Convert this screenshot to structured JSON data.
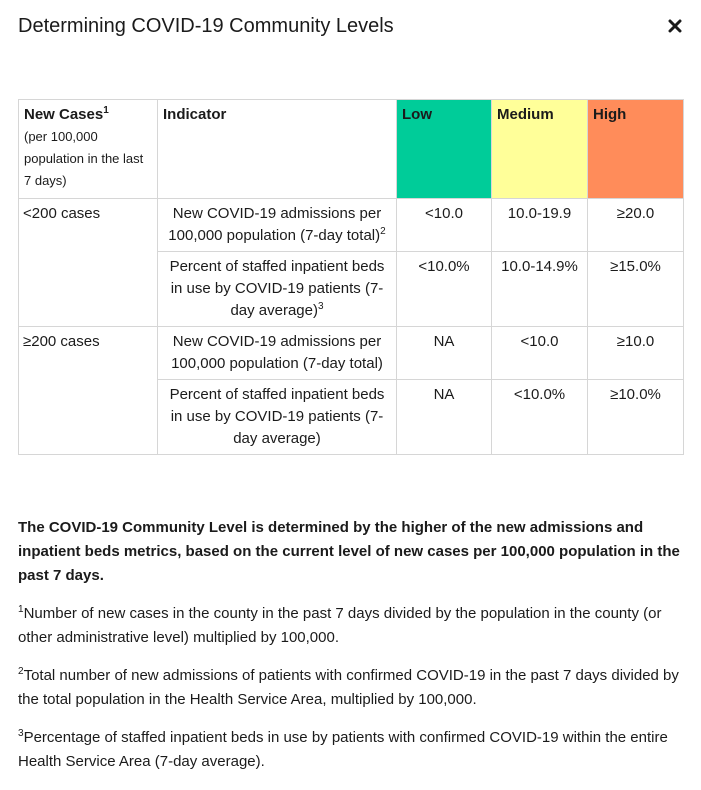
{
  "dialog": {
    "title": "Determining COVID-19 Community Levels",
    "close_icon": "close-icon"
  },
  "table": {
    "headers": {
      "new_cases": "New Cases",
      "new_cases_sup": "1",
      "new_cases_sub": "(per 100,000 population in the last 7 days)",
      "indicator": "Indicator",
      "low": "Low",
      "medium": "Medium",
      "high": "High"
    },
    "colors": {
      "low": "#00cc99",
      "medium": "#ffff99",
      "high": "#ff8c5a"
    },
    "groups": [
      {
        "label": "<200 cases",
        "rows": [
          {
            "indicator": "New COVID-19 admissions per 100,000 population (7-day total)",
            "sup": "2",
            "low": "<10.0",
            "medium": "10.0-19.9",
            "high": "≥20.0"
          },
          {
            "indicator": "Percent of staffed inpatient beds in use by COVID-19 patients (7-day average)",
            "sup": "3",
            "low": "<10.0%",
            "medium": "10.0-14.9%",
            "high": "≥15.0%"
          }
        ]
      },
      {
        "label": "≥200 cases",
        "rows": [
          {
            "indicator": "New COVID-19 admissions per 100,000 population (7-day total)",
            "sup": "",
            "low": "NA",
            "medium": "<10.0",
            "high": "≥10.0"
          },
          {
            "indicator": "Percent of staffed inpatient beds in use by COVID-19 patients (7-day average)",
            "sup": "",
            "low": "NA",
            "medium": "<10.0%",
            "high": "≥10.0%"
          }
        ]
      }
    ]
  },
  "summary": "The COVID-19 Community Level is determined by the higher of the new admissions and inpatient beds metrics, based on the current level of new cases per 100,000 population in the past 7 days.",
  "footnotes": [
    {
      "num": "1",
      "text": "Number of new cases in the county in the past 7 days divided by the population in the county (or other administrative level) multiplied by 100,000."
    },
    {
      "num": "2",
      "text": "Total number of new admissions of patients with confirmed COVID-19 in the past 7 days divided by the total population in the Health Service Area, multiplied by 100,000."
    },
    {
      "num": "3",
      "text": "Percentage of staffed inpatient beds in use by patients with confirmed COVID-19 within the entire Health Service Area (7-day average)."
    }
  ]
}
